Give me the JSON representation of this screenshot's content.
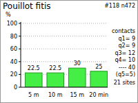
{
  "chart_data": {
    "type": "bar",
    "title": "Pouillot fitis",
    "subtitle": "#118 n472",
    "y_label": "%",
    "categories": [
      "5 m",
      "10 m",
      "15 m",
      "20 min"
    ],
    "values": [
      22.5,
      22.5,
      30,
      25
    ],
    "color": "#44ee44",
    "ylim": [
      0,
      100
    ],
    "yticks": [
      0,
      20,
      40,
      60,
      80,
      100
    ],
    "grid": true,
    "data_labels": true,
    "annotations": [
      "contacts",
      "q1= 9",
      "q2= 9",
      "q3= 12",
      "q4= 10",
      "---- 40",
      "(q5=5)",
      "21 sites"
    ]
  }
}
